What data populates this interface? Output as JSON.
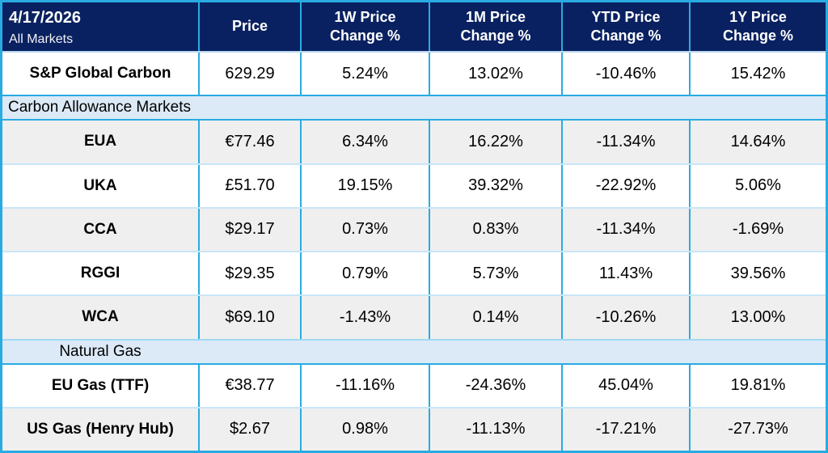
{
  "colors": {
    "header_navy": "#0A2161",
    "grid_cyan": "#29ABE2",
    "section_band_blue": "#DCE9F6",
    "alt_row_gray": "#EFEFEF",
    "header_text": "#FFFFFF",
    "body_text": "#000000"
  },
  "chart_data": {
    "type": "table",
    "as_of_date": "4/17/2026",
    "scope_label": "All Markets",
    "columns": [
      "Price",
      "1W Price Change %",
      "1M Price Change %",
      "YTD Price Change %",
      "1Y Price Change %"
    ],
    "column_lines": [
      {
        "l1": "Price",
        "l2": ""
      },
      {
        "l1": "1W Price",
        "l2": "Change %"
      },
      {
        "l1": "1M Price",
        "l2": "Change %"
      },
      {
        "l1": "YTD Price",
        "l2": "Change %"
      },
      {
        "l1": "1Y Price",
        "l2": "Change %"
      }
    ],
    "section_labels": [
      "Carbon Allowance Markets",
      "Natural Gas"
    ],
    "rows": [
      {
        "market": "S&P Global Carbon",
        "section": "All Markets",
        "price": "629.29",
        "w1": "5.24%",
        "m1": "13.02%",
        "ytd": "-10.46%",
        "y1": "15.42%"
      },
      {
        "market": "EUA",
        "section": "Carbon Allowance Markets",
        "price": "€77.46",
        "w1": "6.34%",
        "m1": "16.22%",
        "ytd": "-11.34%",
        "y1": "14.64%"
      },
      {
        "market": "UKA",
        "section": "Carbon Allowance Markets",
        "price": "£51.70",
        "w1": "19.15%",
        "m1": "39.32%",
        "ytd": "-22.92%",
        "y1": "5.06%"
      },
      {
        "market": "CCA",
        "section": "Carbon Allowance Markets",
        "price": "$29.17",
        "w1": "0.73%",
        "m1": "0.83%",
        "ytd": "-11.34%",
        "y1": "-1.69%"
      },
      {
        "market": "RGGI",
        "section": "Carbon Allowance Markets",
        "price": "$29.35",
        "w1": "0.79%",
        "m1": "5.73%",
        "ytd": "11.43%",
        "y1": "39.56%"
      },
      {
        "market": "WCA",
        "section": "Carbon Allowance Markets",
        "price": "$69.10",
        "w1": "-1.43%",
        "m1": "0.14%",
        "ytd": "-10.26%",
        "y1": "13.00%"
      },
      {
        "market": "EU Gas (TTF)",
        "section": "Natural Gas",
        "price": "€38.77",
        "w1": "-11.16%",
        "m1": "-24.36%",
        "ytd": "45.04%",
        "y1": "19.81%"
      },
      {
        "market": "US Gas (Henry Hub)",
        "section": "Natural Gas",
        "price": "$2.67",
        "w1": "0.98%",
        "m1": "-11.13%",
        "ytd": "-17.21%",
        "y1": "-27.73%"
      }
    ]
  }
}
